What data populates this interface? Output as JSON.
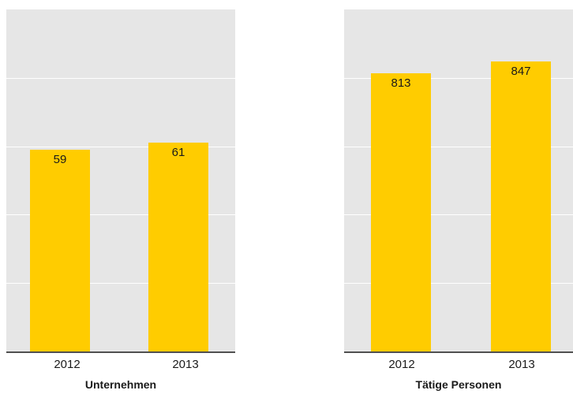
{
  "colors": {
    "bar": "#ffcc00",
    "panel": "#e6e6e6",
    "grid": "#ffffff",
    "axis": "#505050"
  },
  "chart_data": [
    {
      "type": "bar",
      "xlabel": "Unternehmen",
      "categories": [
        "2012",
        "2013"
      ],
      "values": [
        59,
        61
      ],
      "ylim": [
        0,
        100
      ],
      "grid": true
    },
    {
      "type": "bar",
      "xlabel": "Tätige Personen",
      "categories": [
        "2012",
        "2013"
      ],
      "values": [
        813,
        847
      ],
      "ylim": [
        0,
        1000
      ],
      "grid": true
    }
  ]
}
